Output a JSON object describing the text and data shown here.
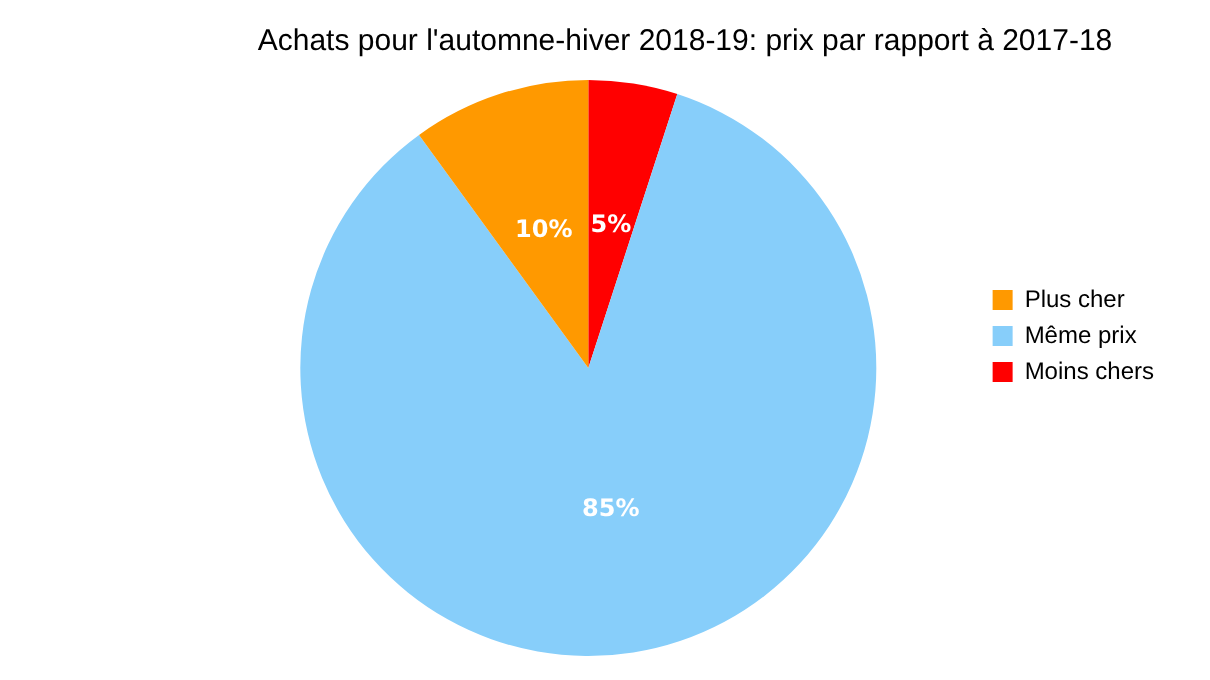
{
  "chart_data": {
    "type": "pie",
    "title": "Achats pour l'automne-hiver 2018-19: prix par rapport à 2017-18",
    "categories": [
      "Plus cher",
      "Même prix",
      "Moins chers"
    ],
    "values": [
      10,
      85,
      5
    ],
    "value_labels": [
      "10%",
      "85%",
      "5%"
    ],
    "colors": [
      "#ff9900",
      "#87cefa",
      "#ff0000"
    ],
    "legend": "right"
  }
}
